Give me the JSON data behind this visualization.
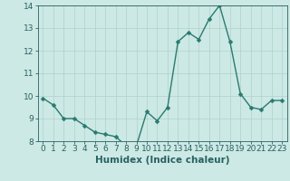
{
  "x": [
    0,
    1,
    2,
    3,
    4,
    5,
    6,
    7,
    8,
    9,
    10,
    11,
    12,
    13,
    14,
    15,
    16,
    17,
    18,
    19,
    20,
    21,
    22,
    23
  ],
  "y": [
    9.9,
    9.6,
    9.0,
    9.0,
    8.7,
    8.4,
    8.3,
    8.2,
    7.8,
    7.8,
    9.3,
    8.9,
    9.5,
    12.4,
    12.8,
    12.5,
    13.4,
    14.0,
    12.4,
    10.1,
    9.5,
    9.4,
    9.8,
    9.8
  ],
  "line_color": "#2a7a6f",
  "marker_color": "#2a7a6f",
  "bg_color": "#cce9e5",
  "grid_color": "#b0d0cc",
  "axis_color": "#2a6060",
  "xlabel": "Humidex (Indice chaleur)",
  "ylim": [
    8,
    14
  ],
  "xlim": [
    -0.5,
    23.5
  ],
  "yticks": [
    8,
    9,
    10,
    11,
    12,
    13,
    14
  ],
  "xticks": [
    0,
    1,
    2,
    3,
    4,
    5,
    6,
    7,
    8,
    9,
    10,
    11,
    12,
    13,
    14,
    15,
    16,
    17,
    18,
    19,
    20,
    21,
    22,
    23
  ],
  "xlabel_fontsize": 7.5,
  "tick_fontsize": 6.5,
  "linewidth": 1.0,
  "markersize": 2.5
}
